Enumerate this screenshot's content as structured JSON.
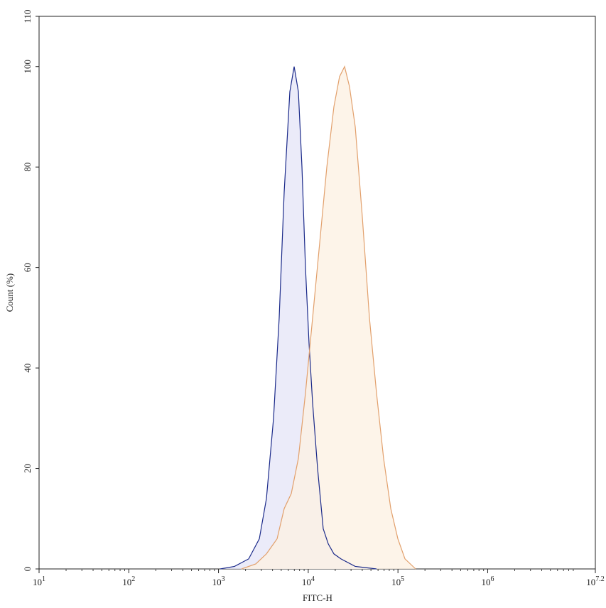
{
  "chart_data": {
    "type": "area",
    "x_label": "FITC-H",
    "y_label": "Count (%)",
    "xscale": "log",
    "xlim": [
      10,
      15848931.92
    ],
    "ylim": [
      0,
      110
    ],
    "xticks": [
      {
        "value": 10,
        "label": "10",
        "exponent": "1"
      },
      {
        "value": 100,
        "label": "10",
        "exponent": "2"
      },
      {
        "value": 1000,
        "label": "10",
        "exponent": "3"
      },
      {
        "value": 10000,
        "label": "10",
        "exponent": "4"
      },
      {
        "value": 100000,
        "label": "10",
        "exponent": "5"
      },
      {
        "value": 1000000,
        "label": "10",
        "exponent": "6"
      },
      {
        "value": 15848931.92,
        "label": "10",
        "exponent": "7.2"
      }
    ],
    "yticks": [
      0,
      20,
      40,
      60,
      80,
      100,
      110
    ],
    "series": [
      {
        "color": "#1b2a8a",
        "fill": "#e6e6f8",
        "x": [
          1045,
          1507,
          2168,
          2851,
          3420,
          4105,
          4746,
          5393,
          6237,
          6966,
          7766,
          8511,
          9316,
          10200,
          11190,
          12710,
          14690,
          16710,
          19320,
          23180,
          33410,
          57680
        ],
        "values": [
          0,
          0.5,
          2,
          6,
          14,
          30,
          50,
          75,
          95,
          100,
          95,
          80,
          60,
          45,
          33,
          20,
          8,
          5,
          3,
          2,
          0.5,
          0
        ]
      },
      {
        "color": "#e2a06c",
        "fill": "#fdf1e3",
        "x": [
          1807,
          2600,
          3420,
          4498,
          5393,
          6471,
          7766,
          9316,
          11190,
          13430,
          16110,
          19320,
          22340,
          25410,
          28840,
          33410,
          40090,
          48080,
          57680,
          69180,
          83180,
          99770,
          119700,
          157400
        ],
        "values": [
          0,
          1,
          3,
          6,
          12,
          15,
          22,
          35,
          50,
          65,
          80,
          92,
          98,
          100,
          96,
          88,
          70,
          50,
          35,
          22,
          12,
          6,
          2,
          0
        ]
      }
    ]
  }
}
